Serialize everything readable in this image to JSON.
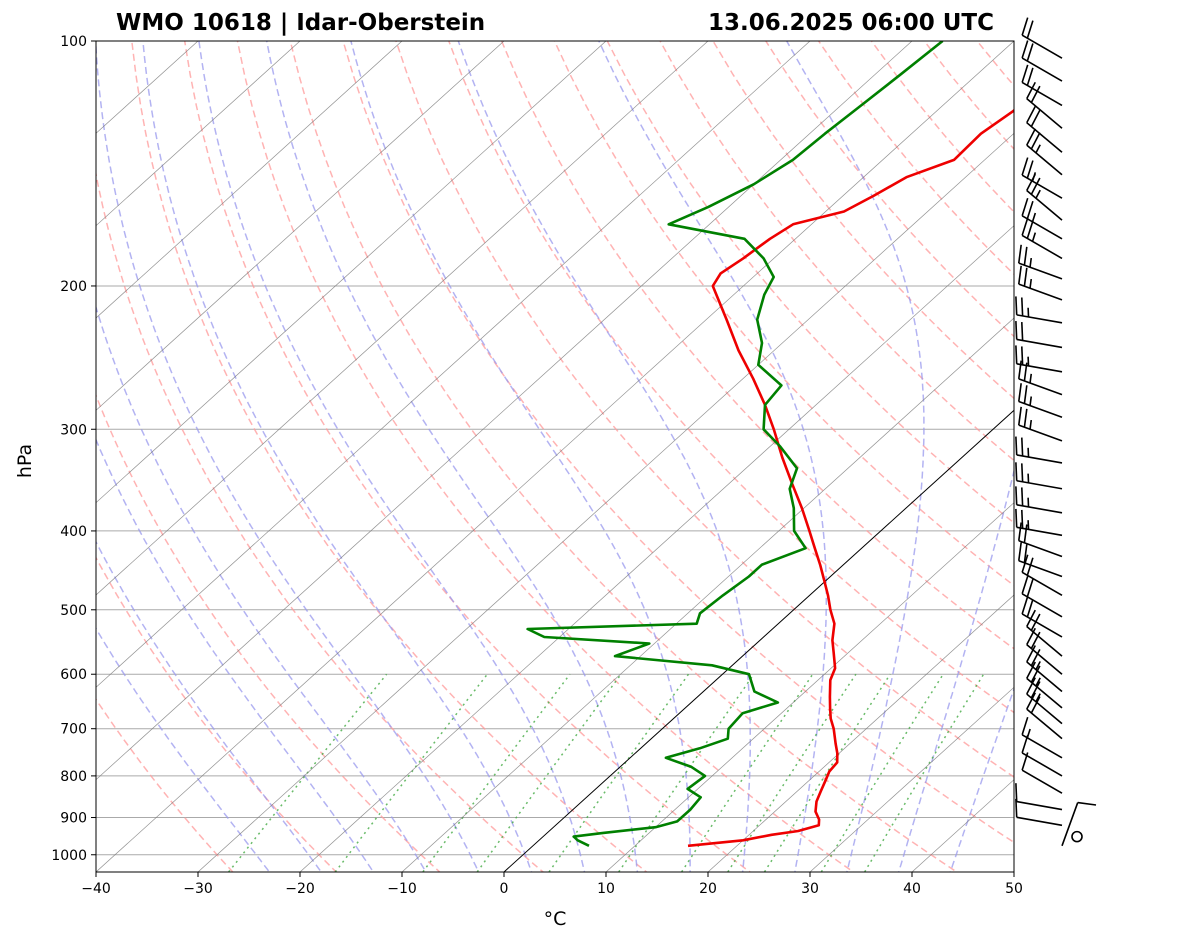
{
  "chart_data": {
    "type": "line",
    "title_left": "WMO 10618 | Idar-Oberstein",
    "title_right": "13.06.2025 06:00 UTC",
    "xlabel": "°C",
    "ylabel": "hPa",
    "xlim": [
      -40,
      50
    ],
    "ylim": [
      1050,
      100
    ],
    "y_scale": "log",
    "x_ticks": [
      -40,
      -30,
      -20,
      -10,
      0,
      10,
      20,
      30,
      40,
      50
    ],
    "x_tick_labels": [
      "−40",
      "−30",
      "−20",
      "−10",
      "0",
      "10",
      "20",
      "30",
      "40",
      "50"
    ],
    "y_ticks": [
      1000,
      900,
      800,
      700,
      600,
      500,
      400,
      300,
      200,
      100
    ],
    "y_tick_labels": [
      "1000",
      "900",
      "800",
      "700",
      "600",
      "500",
      "400",
      "300",
      "200",
      "100"
    ],
    "grid": true,
    "skew_T": true,
    "background_lines": {
      "dry_adiabats_color": "#ff9999",
      "moist_adiabats_color": "#9999ee",
      "mixing_ratio_color": "#44aa44",
      "isotherms_color": "#777777",
      "zero_isotherm_color": "#000000"
    },
    "series": [
      {
        "key": "temperature",
        "color": "#ee0000",
        "points": [
          {
            "p": 975,
            "t": 15.2
          },
          {
            "p": 960,
            "t": 20.0
          },
          {
            "p": 945,
            "t": 22.2
          },
          {
            "p": 935,
            "t": 24.4
          },
          {
            "p": 920,
            "t": 25.8
          },
          {
            "p": 905,
            "t": 25.2
          },
          {
            "p": 885,
            "t": 24.0
          },
          {
            "p": 860,
            "t": 23.0
          },
          {
            "p": 835,
            "t": 22.3
          },
          {
            "p": 810,
            "t": 21.6
          },
          {
            "p": 790,
            "t": 21.0
          },
          {
            "p": 770,
            "t": 20.8
          },
          {
            "p": 750,
            "t": 19.8
          },
          {
            "p": 730,
            "t": 18.6
          },
          {
            "p": 700,
            "t": 16.8
          },
          {
            "p": 680,
            "t": 15.4
          },
          {
            "p": 660,
            "t": 14.2
          },
          {
            "p": 640,
            "t": 13.0
          },
          {
            "p": 610,
            "t": 11.2
          },
          {
            "p": 590,
            "t": 10.4
          },
          {
            "p": 565,
            "t": 8.6
          },
          {
            "p": 545,
            "t": 7.1
          },
          {
            "p": 520,
            "t": 5.5
          },
          {
            "p": 500,
            "t": 3.6
          },
          {
            "p": 480,
            "t": 1.8
          },
          {
            "p": 460,
            "t": -0.2
          },
          {
            "p": 440,
            "t": -2.3
          },
          {
            "p": 420,
            "t": -4.6
          },
          {
            "p": 400,
            "t": -7.0
          },
          {
            "p": 375,
            "t": -10.2
          },
          {
            "p": 350,
            "t": -13.8
          },
          {
            "p": 325,
            "t": -17.6
          },
          {
            "p": 300,
            "t": -21.5
          },
          {
            "p": 280,
            "t": -25.0
          },
          {
            "p": 260,
            "t": -29.0
          },
          {
            "p": 240,
            "t": -33.5
          },
          {
            "p": 220,
            "t": -38.0
          },
          {
            "p": 200,
            "t": -43.0
          },
          {
            "p": 193,
            "t": -43.6
          },
          {
            "p": 185,
            "t": -43.0
          },
          {
            "p": 175,
            "t": -42.5
          },
          {
            "p": 168,
            "t": -41.8
          },
          {
            "p": 162,
            "t": -38.2
          },
          {
            "p": 155,
            "t": -37.0
          },
          {
            "p": 147,
            "t": -35.8
          },
          {
            "p": 140,
            "t": -33.0
          },
          {
            "p": 130,
            "t": -33.2
          },
          {
            "p": 122,
            "t": -32.5
          },
          {
            "p": 115,
            "t": -32.2
          },
          {
            "p": 108,
            "t": -31.8
          },
          {
            "p": 100,
            "t": -31.5
          }
        ]
      },
      {
        "key": "dewpoint",
        "color": "#008000",
        "points": [
          {
            "p": 975,
            "t": 5.5
          },
          {
            "p": 960,
            "t": 3.8
          },
          {
            "p": 950,
            "t": 3.0
          },
          {
            "p": 940,
            "t": 5.5
          },
          {
            "p": 925,
            "t": 10.0
          },
          {
            "p": 910,
            "t": 11.5
          },
          {
            "p": 880,
            "t": 11.5
          },
          {
            "p": 850,
            "t": 11.2
          },
          {
            "p": 830,
            "t": 9.0
          },
          {
            "p": 800,
            "t": 9.3
          },
          {
            "p": 780,
            "t": 7.0
          },
          {
            "p": 760,
            "t": 3.5
          },
          {
            "p": 740,
            "t": 5.8
          },
          {
            "p": 720,
            "t": 7.5
          },
          {
            "p": 700,
            "t": 6.5
          },
          {
            "p": 670,
            "t": 6.2
          },
          {
            "p": 650,
            "t": 8.5
          },
          {
            "p": 630,
            "t": 5.0
          },
          {
            "p": 600,
            "t": 2.6
          },
          {
            "p": 585,
            "t": -2.0
          },
          {
            "p": 570,
            "t": -12.5
          },
          {
            "p": 560,
            "t": -11.5
          },
          {
            "p": 550,
            "t": -10.5
          },
          {
            "p": 540,
            "t": -21.5
          },
          {
            "p": 528,
            "t": -24.0
          },
          {
            "p": 520,
            "t": -8.0
          },
          {
            "p": 505,
            "t": -8.8
          },
          {
            "p": 480,
            "t": -8.5
          },
          {
            "p": 455,
            "t": -8.0
          },
          {
            "p": 440,
            "t": -8.0
          },
          {
            "p": 420,
            "t": -5.5
          },
          {
            "p": 400,
            "t": -8.5
          },
          {
            "p": 375,
            "t": -11.0
          },
          {
            "p": 355,
            "t": -13.5
          },
          {
            "p": 335,
            "t": -15.0
          },
          {
            "p": 315,
            "t": -19.0
          },
          {
            "p": 300,
            "t": -22.5
          },
          {
            "p": 280,
            "t": -25.0
          },
          {
            "p": 265,
            "t": -25.5
          },
          {
            "p": 250,
            "t": -30.0
          },
          {
            "p": 235,
            "t": -32.0
          },
          {
            "p": 220,
            "t": -35.0
          },
          {
            "p": 205,
            "t": -37.0
          },
          {
            "p": 195,
            "t": -38.0
          },
          {
            "p": 185,
            "t": -41.0
          },
          {
            "p": 175,
            "t": -45.0
          },
          {
            "p": 168,
            "t": -54.0
          },
          {
            "p": 160,
            "t": -52.0
          },
          {
            "p": 150,
            "t": -50.0
          },
          {
            "p": 140,
            "t": -48.8
          },
          {
            "p": 130,
            "t": -48.5
          },
          {
            "p": 120,
            "t": -48.0
          },
          {
            "p": 110,
            "t": -47.5
          },
          {
            "p": 100,
            "t": -47.0
          }
        ]
      }
    ],
    "wind_barbs": {
      "color": "#000000",
      "levels": [
        {
          "p": 975,
          "dir": 20,
          "spd": 10
        },
        {
          "p": 950,
          "dir": 0,
          "spd": 0
        },
        {
          "p": 920,
          "dir": 280,
          "spd": 10
        },
        {
          "p": 880,
          "dir": 280,
          "spd": 10
        },
        {
          "p": 840,
          "dir": 300,
          "spd": 10
        },
        {
          "p": 800,
          "dir": 300,
          "spd": 10
        },
        {
          "p": 760,
          "dir": 300,
          "spd": 15
        },
        {
          "p": 720,
          "dir": 310,
          "spd": 20
        },
        {
          "p": 690,
          "dir": 310,
          "spd": 25
        },
        {
          "p": 660,
          "dir": 310,
          "spd": 25
        },
        {
          "p": 630,
          "dir": 310,
          "spd": 25
        },
        {
          "p": 600,
          "dir": 310,
          "spd": 20
        },
        {
          "p": 570,
          "dir": 310,
          "spd": 20
        },
        {
          "p": 540,
          "dir": 300,
          "spd": 20
        },
        {
          "p": 510,
          "dir": 300,
          "spd": 20
        },
        {
          "p": 480,
          "dir": 300,
          "spd": 20
        },
        {
          "p": 455,
          "dir": 290,
          "spd": 20
        },
        {
          "p": 430,
          "dir": 290,
          "spd": 20
        },
        {
          "p": 405,
          "dir": 280,
          "spd": 25
        },
        {
          "p": 380,
          "dir": 280,
          "spd": 25
        },
        {
          "p": 355,
          "dir": 280,
          "spd": 25
        },
        {
          "p": 330,
          "dir": 280,
          "spd": 25
        },
        {
          "p": 310,
          "dir": 290,
          "spd": 25
        },
        {
          "p": 290,
          "dir": 290,
          "spd": 25
        },
        {
          "p": 272,
          "dir": 290,
          "spd": 25
        },
        {
          "p": 255,
          "dir": 280,
          "spd": 25
        },
        {
          "p": 238,
          "dir": 280,
          "spd": 20
        },
        {
          "p": 222,
          "dir": 280,
          "spd": 25
        },
        {
          "p": 208,
          "dir": 290,
          "spd": 25
        },
        {
          "p": 196,
          "dir": 290,
          "spd": 25
        },
        {
          "p": 185,
          "dir": 300,
          "spd": 25
        },
        {
          "p": 175,
          "dir": 300,
          "spd": 25
        },
        {
          "p": 166,
          "dir": 310,
          "spd": 25
        },
        {
          "p": 156,
          "dir": 300,
          "spd": 25
        },
        {
          "p": 146,
          "dir": 310,
          "spd": 25
        },
        {
          "p": 137,
          "dir": 310,
          "spd": 20
        },
        {
          "p": 128,
          "dir": 310,
          "spd": 20
        },
        {
          "p": 120,
          "dir": 300,
          "spd": 20
        },
        {
          "p": 112,
          "dir": 300,
          "spd": 20
        },
        {
          "p": 105,
          "dir": 300,
          "spd": 20
        }
      ]
    }
  }
}
